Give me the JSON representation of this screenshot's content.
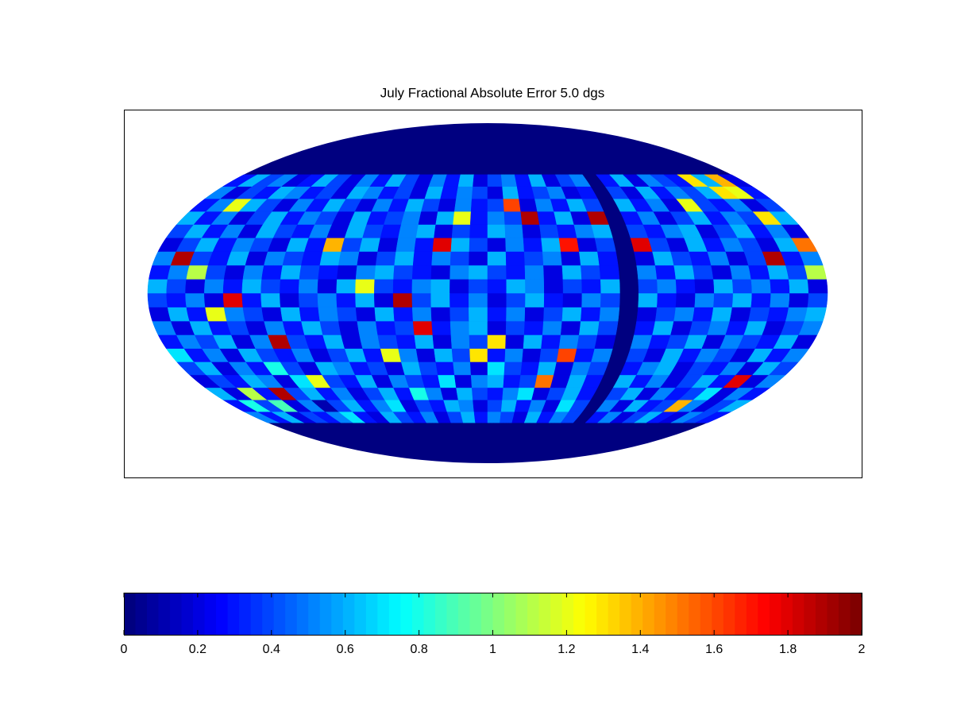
{
  "chart_data": {
    "type": "heatmap",
    "projection": "mollweide",
    "title": "July Fractional Absolute Error 5.0 dgs",
    "lat": [
      -60,
      -54,
      -48,
      -42,
      -36,
      -30,
      -24,
      -18,
      -12,
      -6,
      0,
      6,
      12,
      18,
      24,
      30,
      36,
      42,
      48
    ],
    "lon": [
      -180,
      -170,
      -160,
      -150,
      -140,
      -130,
      -120,
      -110,
      -100,
      -90,
      -80,
      -70,
      -60,
      -50,
      -40,
      -30,
      -20,
      -10,
      0,
      10,
      20,
      30,
      40,
      50,
      60,
      70,
      80,
      90,
      100,
      110,
      120,
      130,
      140,
      150,
      160,
      170
    ],
    "clim": [
      0,
      2
    ],
    "cticks": [
      0,
      0.2,
      0.4,
      0.6,
      0.8,
      1,
      1.2,
      1.4,
      1.6,
      1.8,
      2
    ],
    "values": [
      [
        0.5,
        0.3,
        0.6,
        0.2,
        0.4,
        0.3,
        0.5,
        0.7,
        0.3,
        0.2,
        0.6,
        0.4,
        0.3,
        0.5,
        0.2,
        0.4,
        0.6,
        0.3,
        0.5,
        0.4,
        0.2,
        0.6,
        0.3,
        0.5,
        0.4,
        null,
        0.3,
        0.5,
        0.2,
        0.4,
        0.6,
        0.3,
        0.2,
        0.5,
        0.4,
        0.3
      ],
      [
        0.3,
        0.8,
        0.4,
        0.9,
        0.2,
        0.5,
        0.1,
        0.4,
        0.6,
        0.3,
        0.5,
        0.7,
        0.2,
        0.4,
        0.3,
        0.6,
        0.5,
        0.2,
        0.4,
        0.6,
        0.3,
        0.5,
        0.2,
        0.7,
        0.4,
        null,
        0.5,
        0.2,
        0.6,
        0.3,
        0.4,
        1.4,
        0.5,
        0.2,
        0.4,
        0.6
      ],
      [
        0.6,
        0.2,
        1.1,
        0.3,
        1.9,
        0.4,
        0.6,
        0.3,
        0.5,
        0.2,
        0.4,
        0.6,
        0.3,
        0.8,
        0.5,
        0.2,
        0.6,
        0.4,
        0.3,
        0.5,
        0.7,
        0.2,
        0.4,
        0.6,
        0.3,
        null,
        0.4,
        0.6,
        0.2,
        0.5,
        0.3,
        0.4,
        0.7,
        0.2,
        0.5,
        0.3
      ],
      [
        0.2,
        0.4,
        0.3,
        0.6,
        0.5,
        0.2,
        0.7,
        1.2,
        0.4,
        0.3,
        0.6,
        0.2,
        0.5,
        0.4,
        0.3,
        0.7,
        0.2,
        0.5,
        0.6,
        0.3,
        0.4,
        1.5,
        0.2,
        0.6,
        0.3,
        null,
        0.6,
        0.3,
        0.5,
        0.2,
        0.4,
        0.6,
        0.3,
        1.8,
        0.2,
        0.5
      ],
      [
        0.4,
        0.6,
        0.2,
        0.5,
        0.3,
        0.8,
        0.4,
        0.2,
        0.6,
        0.5,
        0.3,
        0.4,
        0.2,
        0.6,
        0.4,
        0.3,
        0.5,
        0.2,
        0.7,
        0.4,
        0.3,
        0.6,
        0.2,
        0.5,
        0.4,
        null,
        0.3,
        0.5,
        0.6,
        0.2,
        0.4,
        0.3,
        0.5,
        0.2,
        0.6,
        0.4
      ],
      [
        0.7,
        0.3,
        0.5,
        0.2,
        0.6,
        0.4,
        0.3,
        0.5,
        0.2,
        0.4,
        0.6,
        0.3,
        1.2,
        0.5,
        0.2,
        0.6,
        0.4,
        1.3,
        0.3,
        0.5,
        0.2,
        0.4,
        1.6,
        0.3,
        0.5,
        null,
        0.4,
        0.2,
        0.6,
        0.3,
        0.5,
        0.4,
        0.2,
        0.6,
        0.3,
        0.5
      ],
      [
        0.3,
        0.5,
        0.4,
        0.6,
        0.2,
        0.5,
        1.9,
        0.4,
        0.3,
        0.6,
        0.2,
        0.5,
        0.4,
        0.3,
        0.6,
        0.2,
        0.5,
        0.4,
        1.3,
        0.2,
        0.6,
        0.3,
        0.5,
        0.4,
        0.2,
        null,
        0.5,
        0.3,
        0.4,
        0.6,
        0.2,
        0.5,
        0.4,
        0.3,
        0.6,
        0.2
      ],
      [
        0.5,
        0.2,
        0.6,
        0.3,
        0.4,
        0.2,
        0.5,
        0.3,
        0.6,
        0.4,
        0.2,
        0.5,
        0.3,
        0.4,
        1.8,
        0.3,
        0.5,
        0.6,
        0.2,
        0.4,
        0.3,
        0.5,
        0.2,
        0.6,
        0.4,
        null,
        0.3,
        0.6,
        0.2,
        0.4,
        0.5,
        0.3,
        0.6,
        0.2,
        0.4,
        0.5
      ],
      [
        0.2,
        0.6,
        0.3,
        1.2,
        0.5,
        0.4,
        0.2,
        0.6,
        0.3,
        0.5,
        0.4,
        0.2,
        0.6,
        0.3,
        0.5,
        0.2,
        0.4,
        0.6,
        0.3,
        0.5,
        0.2,
        0.4,
        0.6,
        0.3,
        0.5,
        null,
        0.2,
        0.4,
        0.5,
        0.3,
        0.6,
        0.2,
        0.4,
        0.3,
        0.5,
        0.6
      ],
      [
        0.4,
        0.3,
        0.5,
        0.2,
        1.8,
        0.3,
        0.6,
        0.2,
        0.4,
        0.5,
        0.3,
        0.6,
        0.2,
        1.9,
        0.4,
        0.6,
        0.3,
        0.5,
        0.2,
        0.4,
        0.6,
        0.3,
        0.2,
        0.5,
        0.4,
        null,
        0.6,
        0.3,
        0.2,
        0.5,
        0.4,
        0.6,
        0.3,
        0.5,
        0.2,
        0.4
      ],
      [
        0.6,
        0.4,
        0.2,
        0.5,
        0.3,
        0.6,
        0.4,
        0.3,
        0.5,
        0.2,
        0.6,
        1.2,
        0.4,
        0.3,
        0.5,
        0.6,
        0.2,
        0.4,
        0.3,
        0.6,
        0.5,
        0.2,
        0.4,
        0.3,
        0.6,
        null,
        0.4,
        0.5,
        0.3,
        0.2,
        0.6,
        0.4,
        0.5,
        0.3,
        0.6,
        0.2
      ],
      [
        0.3,
        0.5,
        1.1,
        0.4,
        0.2,
        0.5,
        0.3,
        0.6,
        0.4,
        0.3,
        0.2,
        0.5,
        0.6,
        0.4,
        0.3,
        0.2,
        0.5,
        0.6,
        0.4,
        0.3,
        0.5,
        0.2,
        0.6,
        0.4,
        0.3,
        null,
        0.5,
        0.3,
        0.6,
        0.4,
        0.2,
        0.5,
        0.3,
        0.6,
        0.4,
        1.1
      ],
      [
        0.5,
        1.9,
        0.4,
        0.3,
        0.6,
        0.2,
        0.5,
        0.4,
        0.3,
        0.6,
        0.5,
        0.2,
        0.4,
        0.6,
        0.3,
        0.5,
        0.4,
        0.2,
        0.6,
        0.3,
        0.4,
        0.5,
        0.2,
        0.6,
        0.3,
        null,
        0.2,
        0.6,
        0.4,
        0.3,
        0.5,
        0.2,
        0.4,
        1.9,
        0.3,
        0.5
      ],
      [
        0.2,
        0.4,
        0.6,
        0.3,
        0.5,
        0.4,
        0.2,
        0.6,
        0.3,
        1.4,
        0.4,
        0.6,
        0.2,
        0.5,
        0.3,
        1.8,
        0.6,
        0.4,
        0.2,
        0.5,
        0.3,
        0.6,
        1.7,
        0.2,
        0.4,
        null,
        1.8,
        0.4,
        0.2,
        0.6,
        0.3,
        0.5,
        0.4,
        0.2,
        0.6,
        1.5
      ],
      [
        0.4,
        0.6,
        0.3,
        0.5,
        0.2,
        0.6,
        0.4,
        0.3,
        0.5,
        0.2,
        0.6,
        0.4,
        0.3,
        0.5,
        0.6,
        0.2,
        0.4,
        0.3,
        0.6,
        0.5,
        0.2,
        0.4,
        0.3,
        0.5,
        0.6,
        null,
        0.4,
        0.3,
        0.5,
        0.6,
        0.2,
        0.4,
        0.6,
        0.3,
        0.5,
        0.2
      ],
      [
        0.6,
        0.3,
        0.5,
        0.2,
        0.4,
        0.6,
        0.3,
        0.5,
        0.4,
        0.2,
        0.6,
        0.3,
        0.4,
        0.5,
        0.2,
        0.6,
        1.2,
        0.3,
        0.5,
        0.4,
        1.9,
        0.3,
        0.6,
        0.2,
        1.9,
        null,
        0.3,
        0.5,
        0.2,
        0.4,
        0.6,
        0.3,
        0.5,
        0.4,
        1.3,
        0.6
      ],
      [
        0.3,
        0.5,
        1.2,
        0.6,
        0.4,
        0.2,
        0.5,
        0.3,
        0.6,
        0.4,
        0.2,
        0.5,
        0.3,
        0.6,
        0.4,
        0.2,
        0.5,
        0.3,
        0.4,
        1.6,
        0.2,
        0.5,
        0.3,
        0.6,
        0.4,
        null,
        0.6,
        0.3,
        0.5,
        0.2,
        1.2,
        0.4,
        0.3,
        0.5,
        0.2,
        0.4
      ],
      [
        0.5,
        0.2,
        0.4,
        0.3,
        0.6,
        0.5,
        0.3,
        0.4,
        0.2,
        0.6,
        0.5,
        0.3,
        0.4,
        0.2,
        0.6,
        0.3,
        0.5,
        0.4,
        0.2,
        0.6,
        0.3,
        0.4,
        0.5,
        0.2,
        0.3,
        null,
        0.4,
        0.2,
        0.6,
        0.3,
        0.5,
        0.4,
        0.6,
        1.3,
        1.2,
        0.3
      ],
      [
        0.3,
        0.6,
        0.4,
        0.5,
        0.2,
        0.3,
        0.6,
        0.4,
        0.2,
        0.5,
        0.3,
        0.6,
        0.4,
        0.2,
        0.5,
        0.3,
        0.6,
        0.2,
        0.4,
        0.5,
        0.3,
        0.6,
        0.2,
        0.4,
        0.5,
        null,
        0.3,
        0.6,
        0.2,
        0.5,
        0.4,
        0.3,
        1.3,
        0.6,
        1.4,
        0.2
      ]
    ]
  }
}
